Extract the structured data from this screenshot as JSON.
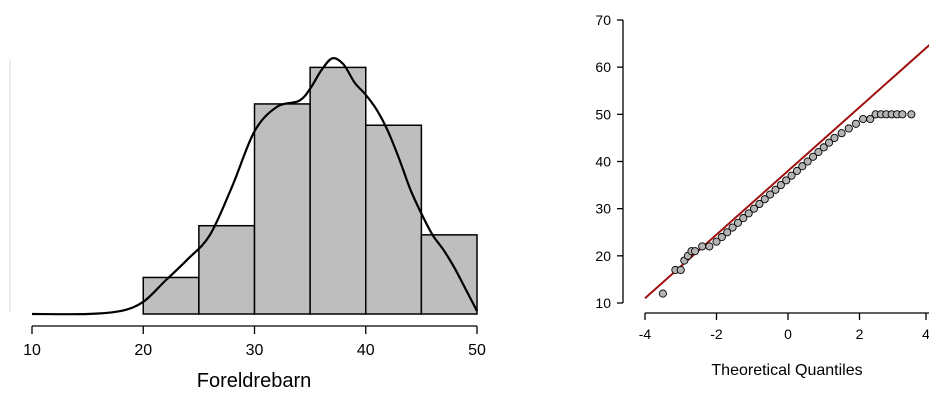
{
  "chart_data": [
    {
      "type": "bar",
      "subtype": "histogram-with-density",
      "xlabel": "Foreldrebarn",
      "ylabel": "",
      "xlim": [
        10,
        50
      ],
      "x_ticks": [
        "10",
        "20",
        "30",
        "40",
        "50"
      ],
      "bins": [
        {
          "x0": 20,
          "x1": 25,
          "value": 0.12
        },
        {
          "x0": 25,
          "x1": 30,
          "value": 0.29
        },
        {
          "x0": 30,
          "x1": 35,
          "value": 0.69
        },
        {
          "x0": 35,
          "x1": 40,
          "value": 0.81
        },
        {
          "x0": 40,
          "x1": 45,
          "value": 0.62
        },
        {
          "x0": 45,
          "x1": 50,
          "value": 0.26
        }
      ],
      "density": {
        "x": [
          10,
          15,
          18,
          20,
          22,
          24,
          26,
          28,
          30,
          32,
          34,
          35,
          36,
          37,
          38,
          39,
          40,
          41,
          42,
          43,
          44,
          45,
          46,
          47,
          48,
          49,
          50
        ],
        "y": [
          0.0,
          0.0,
          0.01,
          0.04,
          0.11,
          0.18,
          0.26,
          0.42,
          0.6,
          0.68,
          0.7,
          0.74,
          0.8,
          0.84,
          0.82,
          0.76,
          0.72,
          0.67,
          0.6,
          0.51,
          0.41,
          0.33,
          0.26,
          0.21,
          0.15,
          0.08,
          0.01
        ]
      },
      "ylim": [
        0,
        0.9
      ],
      "colors": {
        "bars": "#bebebe",
        "bar_edge": "#000000",
        "density": "#000000"
      }
    },
    {
      "type": "scatter",
      "subtype": "qq-plot",
      "xlabel": "Theoretical Quantiles",
      "ylabel": "",
      "xlim": [
        -4,
        4
      ],
      "ylim": [
        10,
        70
      ],
      "x_ticks": [
        "-4",
        "-2",
        "0",
        "2",
        "4"
      ],
      "y_ticks": [
        "10",
        "20",
        "30",
        "40",
        "50",
        "60",
        "70"
      ],
      "reference_line": {
        "x": [
          -4,
          4
        ],
        "y": [
          11,
          65
        ],
        "color": "#a01010"
      },
      "points": [
        {
          "x": -3.5,
          "y": 12
        },
        {
          "x": -3.15,
          "y": 17
        },
        {
          "x": -3.0,
          "y": 17
        },
        {
          "x": -2.9,
          "y": 19
        },
        {
          "x": -2.8,
          "y": 20
        },
        {
          "x": -2.7,
          "y": 21
        },
        {
          "x": -2.6,
          "y": 21
        },
        {
          "x": -2.4,
          "y": 22
        },
        {
          "x": -2.2,
          "y": 22
        },
        {
          "x": -2.0,
          "y": 23
        },
        {
          "x": -1.85,
          "y": 24
        },
        {
          "x": -1.7,
          "y": 25
        },
        {
          "x": -1.55,
          "y": 26
        },
        {
          "x": -1.4,
          "y": 27
        },
        {
          "x": -1.25,
          "y": 28
        },
        {
          "x": -1.1,
          "y": 29
        },
        {
          "x": -0.95,
          "y": 30
        },
        {
          "x": -0.8,
          "y": 31
        },
        {
          "x": -0.65,
          "y": 32
        },
        {
          "x": -0.5,
          "y": 33
        },
        {
          "x": -0.35,
          "y": 34
        },
        {
          "x": -0.2,
          "y": 35
        },
        {
          "x": -0.05,
          "y": 36
        },
        {
          "x": 0.1,
          "y": 37
        },
        {
          "x": 0.25,
          "y": 38
        },
        {
          "x": 0.4,
          "y": 39
        },
        {
          "x": 0.55,
          "y": 40
        },
        {
          "x": 0.7,
          "y": 41
        },
        {
          "x": 0.85,
          "y": 42
        },
        {
          "x": 1.0,
          "y": 43
        },
        {
          "x": 1.15,
          "y": 44
        },
        {
          "x": 1.3,
          "y": 45
        },
        {
          "x": 1.5,
          "y": 46
        },
        {
          "x": 1.7,
          "y": 47
        },
        {
          "x": 1.9,
          "y": 48
        },
        {
          "x": 2.1,
          "y": 49
        },
        {
          "x": 2.3,
          "y": 49
        },
        {
          "x": 2.45,
          "y": 50
        },
        {
          "x": 2.6,
          "y": 50
        },
        {
          "x": 2.75,
          "y": 50
        },
        {
          "x": 2.9,
          "y": 50
        },
        {
          "x": 3.05,
          "y": 50
        },
        {
          "x": 3.2,
          "y": 50
        },
        {
          "x": 3.45,
          "y": 50
        }
      ],
      "colors": {
        "point_fill": "#b4b4b4",
        "point_edge": "#000000"
      }
    }
  ]
}
